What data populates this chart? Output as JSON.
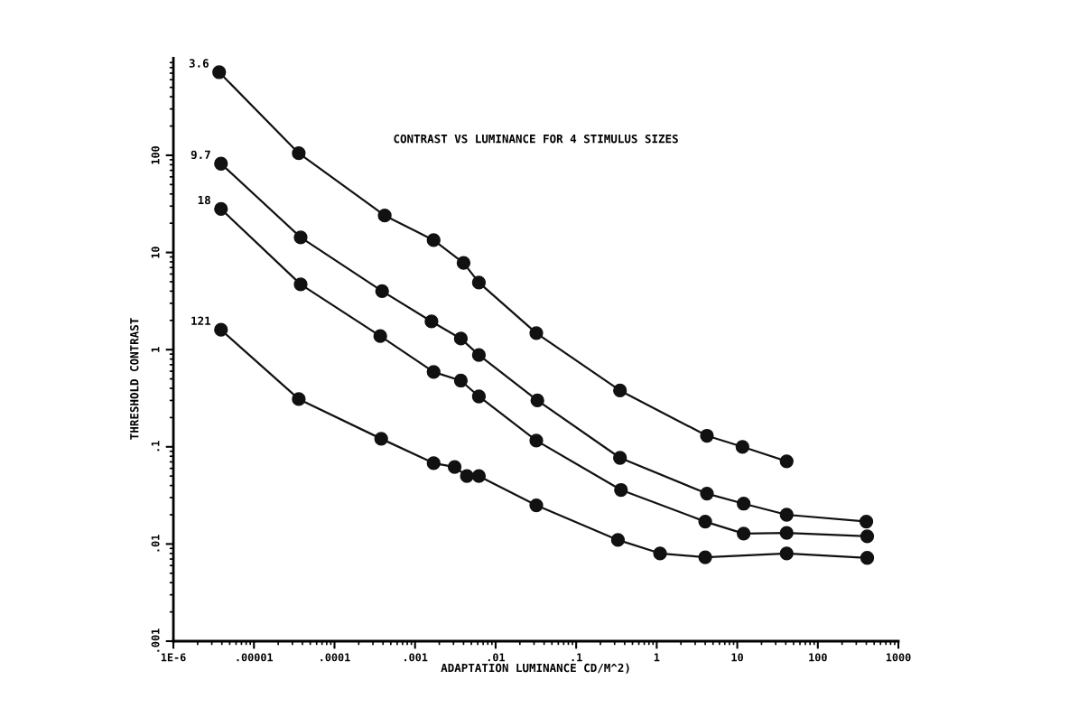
{
  "chart_data": {
    "type": "line",
    "title": "CONTRAST VS LUMINANCE FOR 4 STIMULUS SIZES",
    "xlabel": "ADAPTATION LUMINANCE CD/M^2)",
    "ylabel": "THRESHOLD CONTRAST",
    "log": "xy",
    "xlim": [
      1e-06,
      1000
    ],
    "ylim": [
      0.001,
      1000
    ],
    "xticks": [
      {
        "value": 1e-06,
        "label": "1E-6"
      },
      {
        "value": 1e-05,
        "label": ".00001"
      },
      {
        "value": 0.0001,
        "label": ".0001"
      },
      {
        "value": 0.001,
        "label": ".001"
      },
      {
        "value": 0.01,
        "label": ".01"
      },
      {
        "value": 0.1,
        "label": ".1"
      },
      1,
      10,
      100,
      1000
    ],
    "yticks": [
      {
        "value": 0.001,
        "label": ".001"
      },
      {
        "value": 0.01,
        "label": ".01"
      },
      {
        "value": 0.1,
        "label": ".1"
      },
      1,
      10,
      100
    ],
    "marker": "circle",
    "line_style": "solid",
    "grid": false,
    "legend": false,
    "series": [
      {
        "name": "3.6",
        "color": "#111111",
        "x": [
          3.7e-06,
          3.6e-05,
          0.00042,
          0.0017,
          0.004,
          0.0062,
          0.032,
          0.35,
          4.2,
          11.6,
          41
        ],
        "values": [
          716,
          105,
          24,
          13.4,
          7.8,
          4.9,
          1.48,
          0.38,
          0.13,
          0.1,
          0.071
        ]
      },
      {
        "name": "9.7",
        "color": "#111111",
        "x": [
          3.9e-06,
          3.8e-05,
          0.00039,
          0.0016,
          0.0037,
          0.0062,
          0.033,
          0.35,
          4.2,
          12,
          41,
          400
        ],
        "values": [
          82,
          14.3,
          4.0,
          1.95,
          1.3,
          0.88,
          0.3,
          0.077,
          0.033,
          0.026,
          0.02,
          0.017
        ]
      },
      {
        "name": "18",
        "color": "#111111",
        "x": [
          3.9e-06,
          3.8e-05,
          0.00037,
          0.0017,
          0.0037,
          0.0062,
          0.032,
          0.36,
          4.0,
          12,
          41,
          410
        ],
        "values": [
          28,
          4.7,
          1.38,
          0.59,
          0.48,
          0.33,
          0.116,
          0.036,
          0.017,
          0.0128,
          0.013,
          0.012
        ]
      },
      {
        "name": "121",
        "color": "#111111",
        "x": [
          3.9e-06,
          3.6e-05,
          0.00038,
          0.0017,
          0.0031,
          0.0044,
          0.0062,
          0.032,
          0.33,
          1.1,
          4.0,
          41,
          410
        ],
        "values": [
          1.6,
          0.31,
          0.121,
          0.068,
          0.062,
          0.05,
          0.05,
          0.025,
          0.011,
          0.008,
          0.0073,
          0.008,
          0.0072
        ]
      }
    ]
  }
}
